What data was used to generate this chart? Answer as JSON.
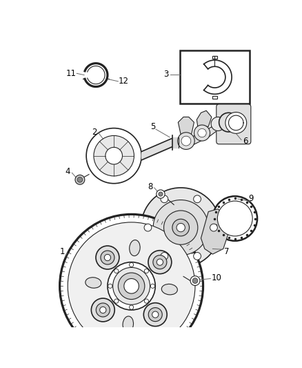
{
  "background_color": "#ffffff",
  "line_color": "#222222",
  "fig_width": 4.38,
  "fig_height": 5.33,
  "dpi": 100
}
